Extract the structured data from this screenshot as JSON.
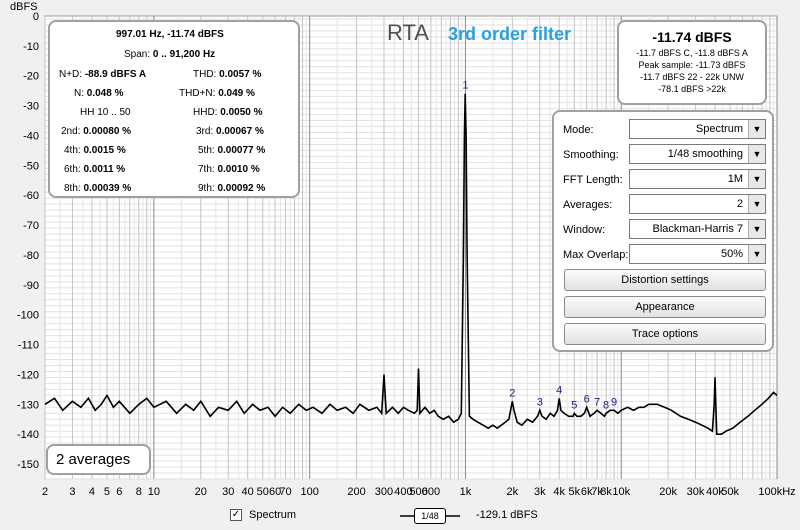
{
  "title": "RTA",
  "subtitle": "3rd order filter",
  "y_axis_label": "dBFS",
  "stats": {
    "cursor": "997.01 Hz, -11.74 dBFS",
    "span_label": "Span:",
    "span_value": "0 .. 91,200 Hz",
    "nd_label": "N+D:",
    "nd_value": "-88.9 dBFS A",
    "thd_label": "THD:",
    "thd_value": "0.0057 %",
    "n_label": "N:",
    "n_value": "0.048 %",
    "thdn_label": "THD+N:",
    "thdn_value": "0.049 %",
    "hh_label": "HH 10 .. 50",
    "hhd_label": "HHD:",
    "hhd_value": "0.0050 %",
    "h2_label": "2nd:",
    "h2_value": "0.00080 %",
    "h3_label": "3rd:",
    "h3_value": "0.00067 %",
    "h4_label": "4th:",
    "h4_value": "0.0015 %",
    "h5_label": "5th:",
    "h5_value": "0.00077 %",
    "h6_label": "6th:",
    "h6_value": "0.0011 %",
    "h7_label": "7th:",
    "h7_value": "0.0010 %",
    "h8_label": "8th:",
    "h8_value": "0.00039 %",
    "h9_label": "9th:",
    "h9_value": "0.00092 %"
  },
  "level": {
    "main": "-11.74 dBFS",
    "line1": "-11.7 dBFS C, -11.8 dBFS A",
    "line2": "Peak sample: -11.73 dBFS",
    "line3": "-11.7 dBFS 22 - 22k UNW",
    "line4": "-78.1 dBFS >22k"
  },
  "controls": {
    "mode_label": "Mode:",
    "mode_value": "Spectrum",
    "smoothing_label": "Smoothing:",
    "smoothing_value": "1/48 smoothing",
    "fft_label": "FFT Length:",
    "fft_value": "1M",
    "averages_label": "Averages:",
    "averages_value": "2",
    "window_label": "Window:",
    "window_value": "Blackman-Harris 7",
    "overlap_label": "Max Overlap:",
    "overlap_value": "50%",
    "distortion_button": "Distortion settings",
    "appearance_button": "Appearance",
    "trace_button": "Trace options"
  },
  "averages_badge": "2 averages",
  "legend": {
    "spectrum_label": "Spectrum",
    "spectrum_checked": true,
    "smoothing_icon": "1/48",
    "level_value": "-129.1 dBFS"
  },
  "chart_data": {
    "type": "line",
    "xscale": "log",
    "xlim": [
      2,
      100000
    ],
    "ylim": [
      -155,
      0
    ],
    "grid": true,
    "x_tick_labels": [
      "2",
      "3",
      "4",
      "5",
      "6",
      "8",
      "10",
      "20",
      "30",
      "40",
      "50",
      "60",
      "70",
      "100",
      "200",
      "300",
      "400",
      "500",
      "600",
      "1k",
      "2k",
      "3k",
      "4k",
      "5k",
      "6k",
      "7k",
      "8k",
      "10k",
      "20k",
      "30k",
      "40k",
      "50k",
      "100kHz"
    ],
    "x_tick_values": [
      2,
      3,
      4,
      5,
      6,
      8,
      10,
      20,
      30,
      40,
      50,
      60,
      70,
      100,
      200,
      300,
      400,
      500,
      600,
      1000,
      2000,
      3000,
      4000,
      5000,
      6000,
      7000,
      8000,
      10000,
      20000,
      30000,
      40000,
      50000,
      100000
    ],
    "y_tick_labels": [
      "0",
      "-10",
      "-20",
      "-30",
      "-40",
      "-50",
      "-60",
      "-70",
      "-80",
      "-90",
      "-100",
      "-110",
      "-120",
      "-130",
      "-140",
      "-150"
    ],
    "y_tick_values": [
      0,
      -10,
      -20,
      -30,
      -40,
      -50,
      -60,
      -70,
      -80,
      -90,
      -100,
      -110,
      -120,
      -130,
      -140,
      -150
    ],
    "harmonic_markers": [
      {
        "label": "1",
        "x": 1000,
        "y": -26
      },
      {
        "label": "2",
        "x": 2000,
        "y": -129
      },
      {
        "label": "3",
        "x": 3000,
        "y": -132
      },
      {
        "label": "4",
        "x": 4000,
        "y": -128
      },
      {
        "label": "5",
        "x": 5000,
        "y": -133
      },
      {
        "label": "6",
        "x": 6000,
        "y": -131
      },
      {
        "label": "7",
        "x": 7000,
        "y": -132
      },
      {
        "label": "8",
        "x": 8000,
        "y": -133
      },
      {
        "label": "9",
        "x": 9000,
        "y": -132
      }
    ],
    "series": [
      {
        "color": "#000000",
        "points": [
          [
            2,
            -130
          ],
          [
            2.3,
            -128
          ],
          [
            2.6,
            -132
          ],
          [
            3,
            -129
          ],
          [
            3.4,
            -131
          ],
          [
            3.8,
            -128
          ],
          [
            4.2,
            -132
          ],
          [
            4.6,
            -130
          ],
          [
            5,
            -127
          ],
          [
            5.5,
            -131
          ],
          [
            6,
            -129
          ],
          [
            7,
            -133
          ],
          [
            8,
            -130
          ],
          [
            9,
            -128
          ],
          [
            10,
            -131
          ],
          [
            12,
            -129
          ],
          [
            14,
            -133
          ],
          [
            16,
            -130
          ],
          [
            18,
            -132
          ],
          [
            20,
            -129
          ],
          [
            23,
            -134
          ],
          [
            26,
            -131
          ],
          [
            30,
            -132
          ],
          [
            34,
            -129
          ],
          [
            38,
            -133
          ],
          [
            43,
            -130
          ],
          [
            48,
            -132
          ],
          [
            54,
            -131
          ],
          [
            60,
            -134
          ],
          [
            67,
            -131
          ],
          [
            75,
            -133
          ],
          [
            85,
            -130
          ],
          [
            95,
            -132
          ],
          [
            105,
            -131
          ],
          [
            120,
            -133
          ],
          [
            135,
            -130
          ],
          [
            150,
            -132
          ],
          [
            170,
            -131
          ],
          [
            190,
            -133
          ],
          [
            210,
            -130
          ],
          [
            240,
            -132
          ],
          [
            270,
            -131
          ],
          [
            290,
            -133
          ],
          [
            300,
            -120
          ],
          [
            310,
            -133
          ],
          [
            340,
            -131
          ],
          [
            370,
            -133
          ],
          [
            400,
            -131
          ],
          [
            430,
            -132
          ],
          [
            470,
            -133
          ],
          [
            490,
            -132
          ],
          [
            500,
            -118
          ],
          [
            510,
            -133
          ],
          [
            550,
            -131
          ],
          [
            590,
            -133
          ],
          [
            630,
            -132
          ],
          [
            670,
            -134
          ],
          [
            720,
            -135
          ],
          [
            780,
            -134
          ],
          [
            840,
            -136
          ],
          [
            900,
            -135
          ],
          [
            940,
            -133
          ],
          [
            970,
            -80
          ],
          [
            985,
            -40
          ],
          [
            997,
            -26
          ],
          [
            1010,
            -40
          ],
          [
            1025,
            -80
          ],
          [
            1060,
            -134
          ],
          [
            1120,
            -135
          ],
          [
            1200,
            -136
          ],
          [
            1300,
            -137
          ],
          [
            1400,
            -138
          ],
          [
            1500,
            -137
          ],
          [
            1600,
            -138
          ],
          [
            1700,
            -137
          ],
          [
            1800,
            -136
          ],
          [
            1900,
            -135
          ],
          [
            2000,
            -129
          ],
          [
            2050,
            -132
          ],
          [
            2150,
            -136
          ],
          [
            2300,
            -137
          ],
          [
            2500,
            -135
          ],
          [
            2700,
            -136
          ],
          [
            2900,
            -134
          ],
          [
            3000,
            -132
          ],
          [
            3100,
            -134
          ],
          [
            3300,
            -135
          ],
          [
            3500,
            -133
          ],
          [
            3700,
            -134
          ],
          [
            3900,
            -132
          ],
          [
            4000,
            -128
          ],
          [
            4100,
            -132
          ],
          [
            4300,
            -133
          ],
          [
            4600,
            -134
          ],
          [
            4900,
            -134
          ],
          [
            5000,
            -133
          ],
          [
            5200,
            -134
          ],
          [
            5500,
            -134
          ],
          [
            5800,
            -133
          ],
          [
            6000,
            -131
          ],
          [
            6300,
            -134
          ],
          [
            6700,
            -133
          ],
          [
            7000,
            -132
          ],
          [
            7400,
            -133
          ],
          [
            7800,
            -134
          ],
          [
            8000,
            -133
          ],
          [
            8500,
            -132
          ],
          [
            9000,
            -132
          ],
          [
            9500,
            -133
          ],
          [
            10000,
            -132
          ],
          [
            11000,
            -131
          ],
          [
            12000,
            -132
          ],
          [
            13000,
            -131
          ],
          [
            14000,
            -131
          ],
          [
            15000,
            -130
          ],
          [
            17000,
            -130
          ],
          [
            19000,
            -131
          ],
          [
            21000,
            -132
          ],
          [
            24000,
            -134
          ],
          [
            27000,
            -135
          ],
          [
            30000,
            -136
          ],
          [
            33000,
            -137
          ],
          [
            36000,
            -138
          ],
          [
            38500,
            -139
          ],
          [
            39500,
            -130
          ],
          [
            40000,
            -121
          ],
          [
            40500,
            -130
          ],
          [
            41000,
            -140
          ],
          [
            44000,
            -140
          ],
          [
            47000,
            -139
          ],
          [
            52000,
            -138
          ],
          [
            58000,
            -136
          ],
          [
            65000,
            -134
          ],
          [
            72000,
            -132
          ],
          [
            80000,
            -130
          ],
          [
            88000,
            -128
          ],
          [
            95000,
            -126
          ],
          [
            100000,
            -127
          ]
        ]
      }
    ]
  }
}
